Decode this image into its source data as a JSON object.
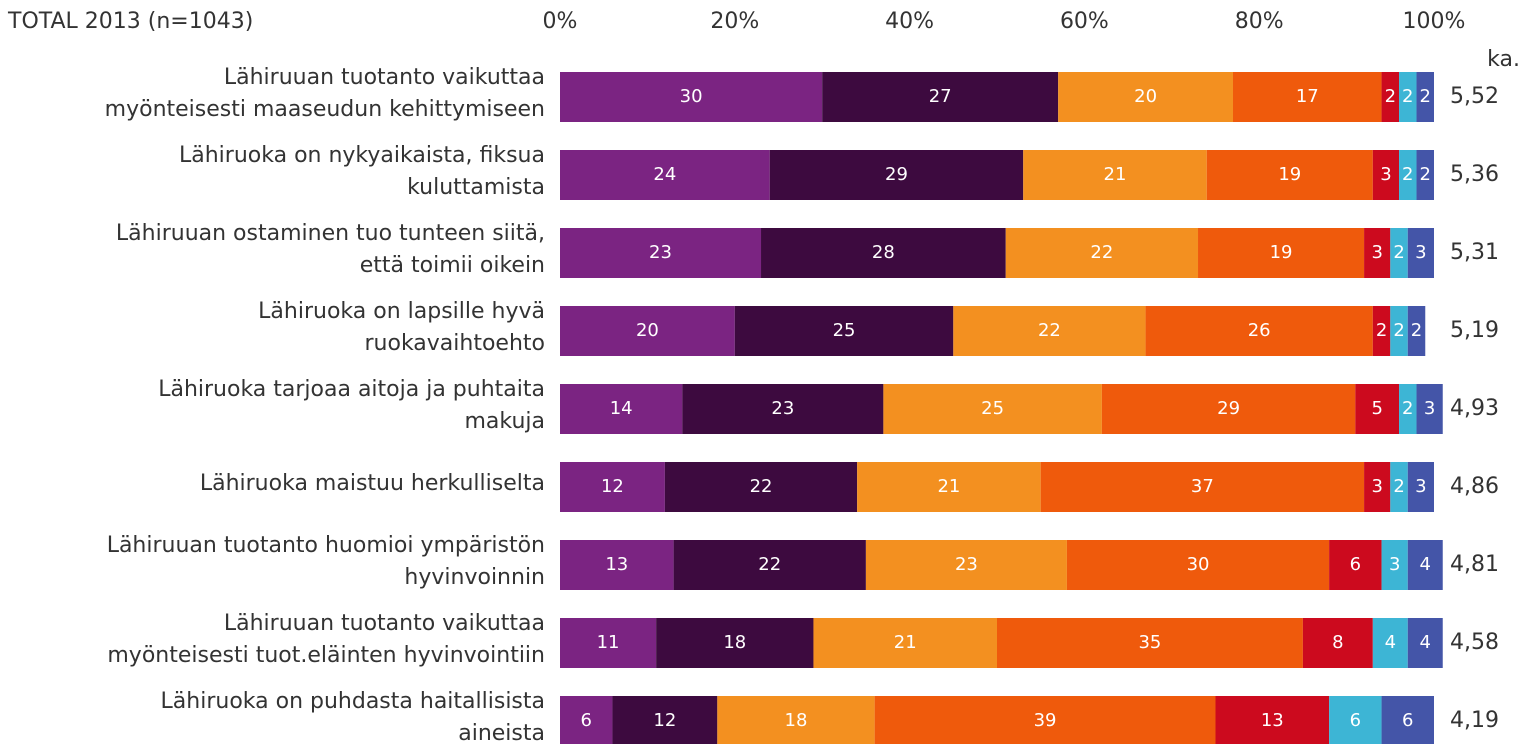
{
  "chart_data": {
    "type": "stacked-bar-horizontal",
    "title": "TOTAL 2013 (n=1043)",
    "categories": [
      [
        "Lähiruuan tuotanto vaikuttaa",
        "myönteisesti maaseudun kehittymiseen"
      ],
      [
        "Lähiruoka on nykyaikaista, fiksua",
        "kuluttamista"
      ],
      [
        "Lähiruuan ostaminen tuo tunteen siitä,",
        "että toimii oikein"
      ],
      [
        "Lähiruoka on lapsille hyvä",
        "ruokavaihtoehto"
      ],
      [
        "Lähiruoka tarjoaa aitoja ja puhtaita",
        "makuja"
      ],
      [
        "Lähiruoka maistuu herkulliselta"
      ],
      [
        "Lähiruuan tuotanto huomioi ympäristön",
        "hyvinvoinnin"
      ],
      [
        "Lähiruuan tuotanto vaikuttaa",
        "myönteisesti tuot.eläinten hyvinvointiin"
      ],
      [
        "Lähiruoka on puhdasta haitallisista",
        "aineista"
      ]
    ],
    "series": [
      {
        "color": "#7b2482",
        "values": [
          30,
          24,
          23,
          20,
          14,
          12,
          13,
          11,
          6
        ]
      },
      {
        "color": "#3d0a3f",
        "values": [
          27,
          29,
          28,
          25,
          23,
          22,
          22,
          18,
          12
        ]
      },
      {
        "color": "#f39020",
        "values": [
          20,
          21,
          22,
          22,
          25,
          21,
          23,
          21,
          18
        ]
      },
      {
        "color": "#ef5a0c",
        "values": [
          17,
          19,
          19,
          26,
          29,
          37,
          30,
          35,
          39
        ]
      },
      {
        "color": "#cc0a1e",
        "values": [
          2,
          3,
          3,
          2,
          5,
          3,
          6,
          8,
          13
        ]
      },
      {
        "color": "#3db5d5",
        "values": [
          2,
          2,
          2,
          2,
          2,
          2,
          3,
          4,
          6
        ]
      },
      {
        "color": "#4455a8",
        "values": [
          2,
          2,
          3,
          2,
          3,
          3,
          4,
          4,
          6
        ]
      }
    ],
    "xlim": [
      0,
      100
    ],
    "xticks": [
      {
        "value": 0,
        "label": "0%"
      },
      {
        "value": 20,
        "label": "20%"
      },
      {
        "value": 40,
        "label": "40%"
      },
      {
        "value": 60,
        "label": "60%"
      },
      {
        "value": 80,
        "label": "80%"
      },
      {
        "value": 100,
        "label": "100%"
      }
    ],
    "mean_header": "ka.",
    "means": [
      "5,52",
      "5,36",
      "5,31",
      "5,19",
      "4,93",
      "4,86",
      "4,81",
      "4,58",
      "4,19"
    ]
  }
}
